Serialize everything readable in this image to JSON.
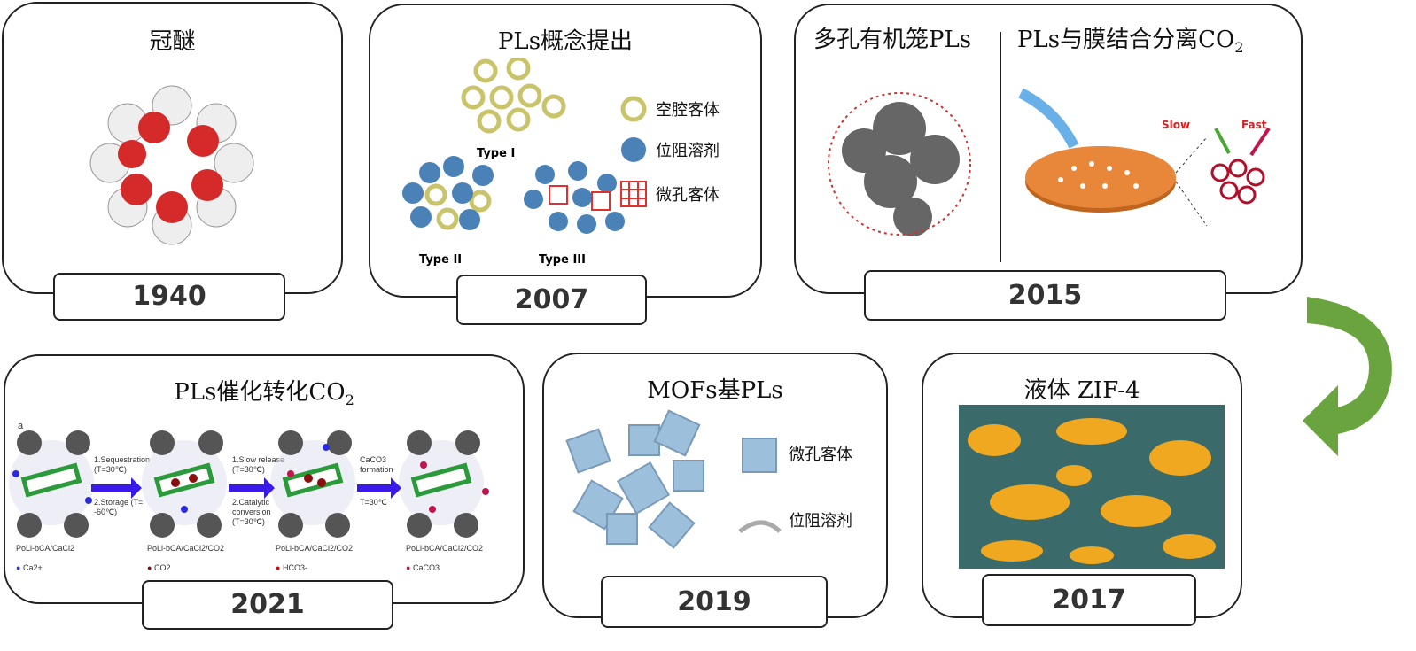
{
  "panels": {
    "crown_ether": {
      "title": "冠醚",
      "year": "1940"
    },
    "concept": {
      "title": "PLs概念提出",
      "year": "2007",
      "types": [
        "Type I",
        "Type II",
        "Type III"
      ],
      "legend": [
        "空腔客体",
        "位阻溶剂",
        "微孔客体"
      ]
    },
    "membrane": {
      "title_left": "多孔有机笼PLs",
      "title_right": "PLs与膜结合分离CO",
      "title_right_sub": "2",
      "year": "2015",
      "slow": "Slow",
      "fast": "Fast"
    },
    "catalysis": {
      "title": "PLs催化转化CO",
      "title_sub": "2",
      "year": "2021",
      "panel_letter": "a",
      "steps": [
        {
          "top": "1.Sequestration (T=30℃)",
          "bottom": "2.Storage (T= -60℃)"
        },
        {
          "top": "1.Slow release (T=30℃)",
          "bottom": "2.Catalytic conversion (T=30℃)"
        },
        {
          "top": "CaCO3 formation",
          "bottom": "T=30℃"
        }
      ],
      "states": [
        "PoLi-bCA/CaCl2",
        "PoLi-bCA/CaCl2/CO2",
        "PoLi-bCA/CaCl2/CO2",
        "PoLi-bCA/CaCl2/CO2"
      ],
      "legend": [
        "Ca2+",
        "CO2",
        "HCO3-",
        "CaCO3"
      ]
    },
    "mof": {
      "title": "MOFs基PLs",
      "year": "2019",
      "legend": [
        "微孔客体",
        "位阻溶剂"
      ]
    },
    "zif": {
      "title": "液体 ZIF-4",
      "year": "2017"
    }
  },
  "colors": {
    "arrow": "#5a9a2a",
    "ca": "#2a2ae0",
    "caco3": "#c0144a",
    "disk": "#e8873a",
    "ring": "#c9c36a",
    "sphere": "#4a82b8",
    "grid": "#e03030",
    "zif_orange": "#f0a820"
  }
}
